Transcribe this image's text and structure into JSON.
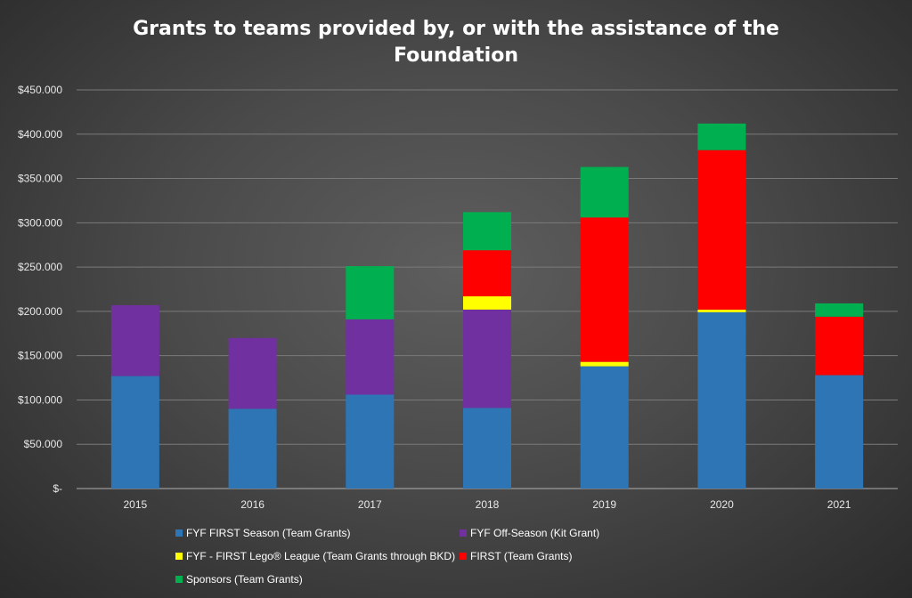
{
  "chart_data": {
    "type": "bar",
    "stacked": true,
    "title": [
      "Grants to teams provided by, or with the assistance of the",
      "Foundation"
    ],
    "categories": [
      "2015",
      "2016",
      "2017",
      "2018",
      "2019",
      "2020",
      "2021"
    ],
    "ylim": [
      0,
      450000
    ],
    "yticks": [
      0,
      50000,
      100000,
      150000,
      200000,
      250000,
      300000,
      350000,
      400000,
      450000
    ],
    "ytick_labels": [
      "$-",
      "$50.000",
      "$100.000",
      "$150.000",
      "$200.000",
      "$250.000",
      "$300.000",
      "$350.000",
      "$400.000",
      "$450.000"
    ],
    "grid": true,
    "legend_position": "bottom",
    "series": [
      {
        "name": "FYF FIRST Season (Team Grants)",
        "color": "#2e75b6",
        "values": [
          127000,
          90000,
          106000,
          91000,
          138000,
          199000,
          128000
        ]
      },
      {
        "name": "FYF Off-Season (Kit Grant)",
        "color": "#7030a0",
        "values": [
          80000,
          80000,
          85000,
          111000,
          0,
          0,
          0
        ]
      },
      {
        "name": "FYF - FIRST Lego® League (Team Grants through BKD)",
        "color": "#ffff00",
        "values": [
          0,
          0,
          0,
          15000,
          5000,
          3000,
          0
        ]
      },
      {
        "name": "FIRST (Team Grants)",
        "color": "#ff0000",
        "values": [
          0,
          0,
          0,
          52000,
          163000,
          180000,
          66000
        ]
      },
      {
        "name": "Sponsors (Team Grants)",
        "color": "#00b050",
        "values": [
          0,
          0,
          60000,
          43000,
          57000,
          30000,
          15000
        ]
      }
    ]
  }
}
